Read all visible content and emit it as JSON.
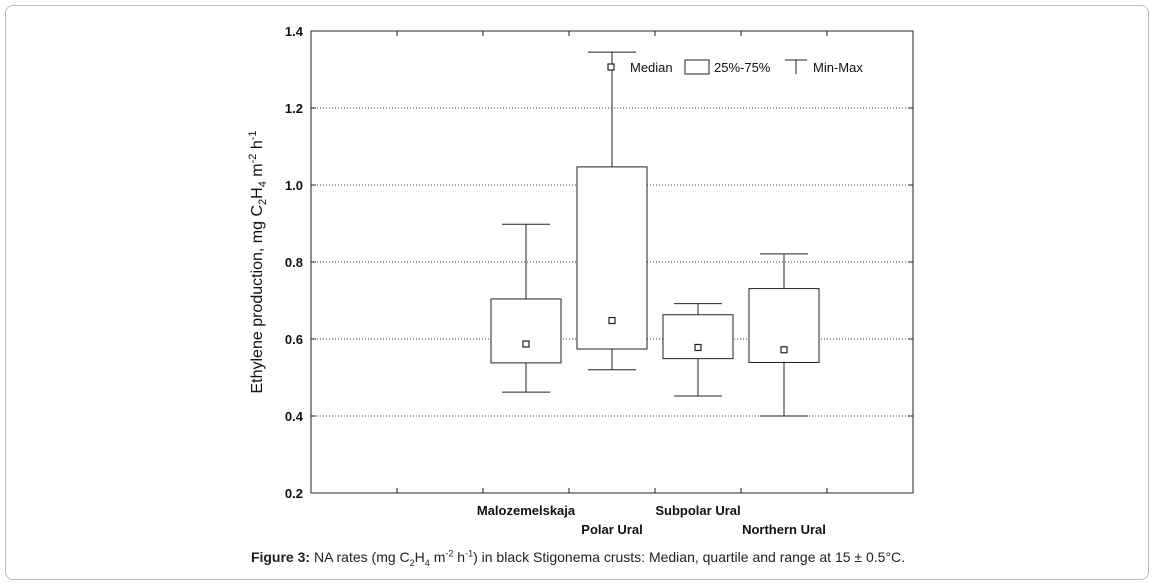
{
  "chart_data": {
    "type": "box",
    "ylabel": {
      "base": "Ethylene production, mg C",
      "sub1": "2",
      "mid1": "H",
      "sub2": "4",
      "mid2": " m",
      "sup1": "-2",
      "mid3": " h",
      "sup2": "-1"
    },
    "ylim": [
      0.2,
      1.4
    ],
    "yticks": [
      0.2,
      0.4,
      0.6,
      0.8,
      1.0,
      1.2,
      1.4
    ],
    "ytick_labels": [
      "0.2",
      "0.4",
      "0.6",
      "0.8",
      "1.0",
      "1.2",
      "1.4"
    ],
    "grid": true,
    "categories": [
      "Malozemelskaja",
      "Polar Ural",
      "Subpolar Ural",
      "Northern Ural"
    ],
    "series": [
      {
        "category": "Malozemelskaja",
        "min": 0.462,
        "q1": 0.538,
        "median": 0.587,
        "q3": 0.704,
        "max": 0.898
      },
      {
        "category": "Polar Ural",
        "min": 0.52,
        "q1": 0.574,
        "median": 0.648,
        "q3": 1.047,
        "max": 1.345
      },
      {
        "category": "Subpolar Ural",
        "min": 0.452,
        "q1": 0.549,
        "median": 0.578,
        "q3": 0.663,
        "max": 0.692
      },
      {
        "category": "Northern Ural",
        "min": 0.4,
        "q1": 0.539,
        "median": 0.572,
        "q3": 0.731,
        "max": 0.821
      }
    ],
    "legend": {
      "placement": "top-right",
      "entries": [
        "Median",
        "25%-75%",
        "Min-Max"
      ]
    }
  },
  "caption": {
    "label": "Figure 3:",
    "text_a": " NA rates (mg C",
    "sub_a": "2",
    "text_b": "H",
    "sub_b": "4",
    "text_c": " m",
    "sup_a": "-2",
    "text_d": " h",
    "sup_b": "-1",
    "text_e": ") in black Stigonema crusts: Median, quartile and range at 15 ± 0.5°C."
  }
}
